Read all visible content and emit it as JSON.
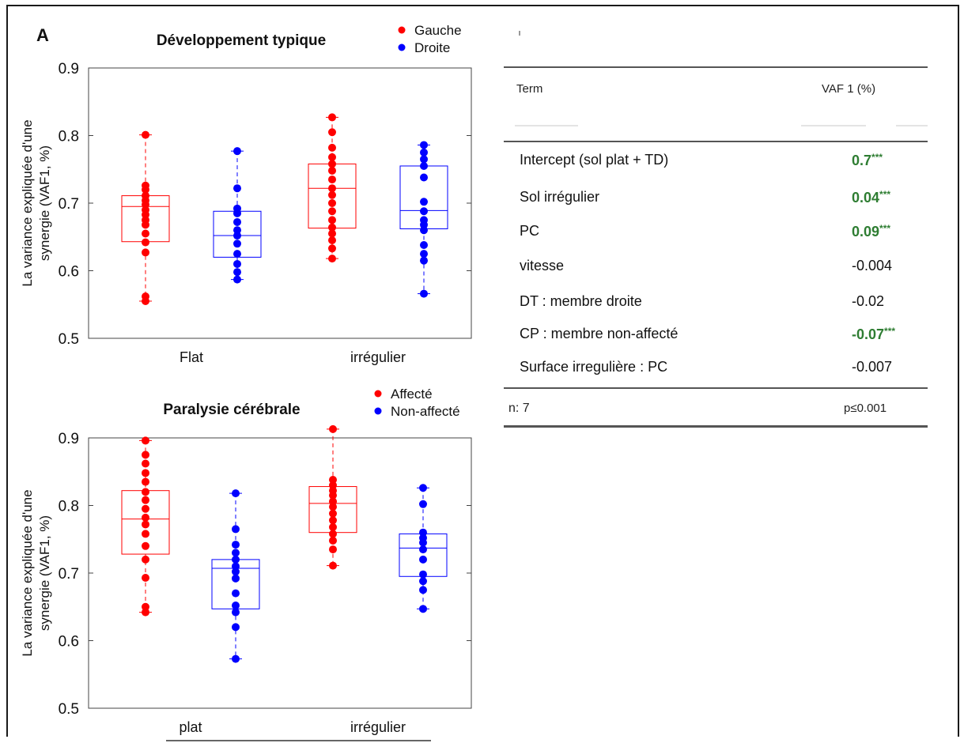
{
  "panel_label": "A",
  "chart_data": [
    {
      "type": "box",
      "title": "Développement typique",
      "ylabel": "La variance expliquée d'une synergie (VAF1, %)",
      "ylim": [
        0.5,
        0.9
      ],
      "yticks": [
        "0.5",
        "0.6",
        "0.7",
        "0.8",
        "0.9"
      ],
      "categories": [
        "Flat",
        "irrégulier"
      ],
      "legend": [
        "Gauche",
        "Droite"
      ],
      "series": [
        {
          "name": "Gauche",
          "color": "#ff0000",
          "boxes": [
            {
              "whisker_low": 0.555,
              "q1": 0.643,
              "median": 0.695,
              "q3": 0.711,
              "whisker_high": 0.801,
              "points": [
                0.555,
                0.562,
                0.627,
                0.642,
                0.655,
                0.668,
                0.675,
                0.683,
                0.69,
                0.698,
                0.704,
                0.711,
                0.72,
                0.726,
                0.801
              ]
            },
            {
              "whisker_low": 0.618,
              "q1": 0.663,
              "median": 0.722,
              "q3": 0.758,
              "whisker_high": 0.827,
              "points": [
                0.618,
                0.633,
                0.645,
                0.655,
                0.664,
                0.675,
                0.688,
                0.7,
                0.712,
                0.722,
                0.735,
                0.748,
                0.758,
                0.768,
                0.782,
                0.805,
                0.827
              ]
            }
          ]
        },
        {
          "name": "Droite",
          "color": "#0000ff",
          "boxes": [
            {
              "whisker_low": 0.587,
              "q1": 0.62,
              "median": 0.652,
              "q3": 0.688,
              "whisker_high": 0.777,
              "points": [
                0.587,
                0.598,
                0.61,
                0.625,
                0.64,
                0.652,
                0.66,
                0.672,
                0.685,
                0.692,
                0.722,
                0.777
              ]
            },
            {
              "whisker_low": 0.566,
              "q1": 0.662,
              "median": 0.689,
              "q3": 0.755,
              "whisker_high": 0.786,
              "points": [
                0.566,
                0.615,
                0.625,
                0.638,
                0.66,
                0.668,
                0.675,
                0.688,
                0.702,
                0.738,
                0.755,
                0.765,
                0.775,
                0.786
              ]
            }
          ]
        }
      ]
    },
    {
      "type": "box",
      "title": "Paralysie cérébrale",
      "ylabel": "La variance expliquée d'une synergie (VAF1, %)",
      "ylim": [
        0.5,
        0.9
      ],
      "yticks": [
        "0.5",
        "0.6",
        "0.7",
        "0.8",
        "0.9"
      ],
      "categories": [
        "plat",
        "irrégulier"
      ],
      "legend": [
        "Affecté",
        "Non-affecté"
      ],
      "series": [
        {
          "name": "Affecté",
          "color": "#ff0000",
          "boxes": [
            {
              "whisker_low": 0.642,
              "q1": 0.728,
              "median": 0.78,
              "q3": 0.822,
              "whisker_high": 0.896,
              "points": [
                0.642,
                0.65,
                0.693,
                0.72,
                0.74,
                0.758,
                0.772,
                0.782,
                0.795,
                0.808,
                0.82,
                0.835,
                0.848,
                0.862,
                0.875,
                0.896
              ]
            },
            {
              "whisker_low": 0.711,
              "q1": 0.76,
              "median": 0.803,
              "q3": 0.828,
              "whisker_high": 0.913,
              "points": [
                0.711,
                0.735,
                0.748,
                0.758,
                0.768,
                0.778,
                0.788,
                0.798,
                0.806,
                0.815,
                0.822,
                0.83,
                0.838,
                0.913
              ]
            }
          ]
        },
        {
          "name": "Non-affecté",
          "color": "#0000ff",
          "boxes": [
            {
              "whisker_low": 0.573,
              "q1": 0.647,
              "median": 0.707,
              "q3": 0.72,
              "whisker_high": 0.818,
              "points": [
                0.573,
                0.62,
                0.642,
                0.652,
                0.67,
                0.692,
                0.702,
                0.71,
                0.72,
                0.73,
                0.742,
                0.765,
                0.818
              ]
            },
            {
              "whisker_low": 0.647,
              "q1": 0.695,
              "median": 0.737,
              "q3": 0.758,
              "whisker_high": 0.826,
              "points": [
                0.647,
                0.675,
                0.688,
                0.698,
                0.72,
                0.735,
                0.745,
                0.752,
                0.76,
                0.802,
                0.826
              ]
            }
          ]
        }
      ]
    }
  ],
  "table": {
    "header_term": "Term",
    "header_value": "VAF 1 (%)",
    "rows": [
      {
        "term": "Intercept (sol plat + TD)",
        "value": "0.7",
        "stars": "***",
        "significant": true
      },
      {
        "term": "Sol irrégulier",
        "value": "0.04",
        "stars": "***",
        "significant": true
      },
      {
        "term": "PC",
        "value": "0.09",
        "stars": "***",
        "significant": true
      },
      {
        "term": "vitesse",
        "value": "-0.004",
        "stars": "",
        "significant": false
      },
      {
        "term": "DT : membre droite",
        "value": "-0.02",
        "stars": "",
        "significant": false
      },
      {
        "term": "CP : membre non-affecté",
        "value": "-0.07",
        "stars": "***",
        "significant": true
      },
      {
        "term": "Surface irregulière : PC",
        "value": "-0.007",
        "stars": "",
        "significant": false
      }
    ],
    "footer_n": "n: 7",
    "footer_p": "p≤0.001",
    "significance_color": "#2e7d32"
  }
}
